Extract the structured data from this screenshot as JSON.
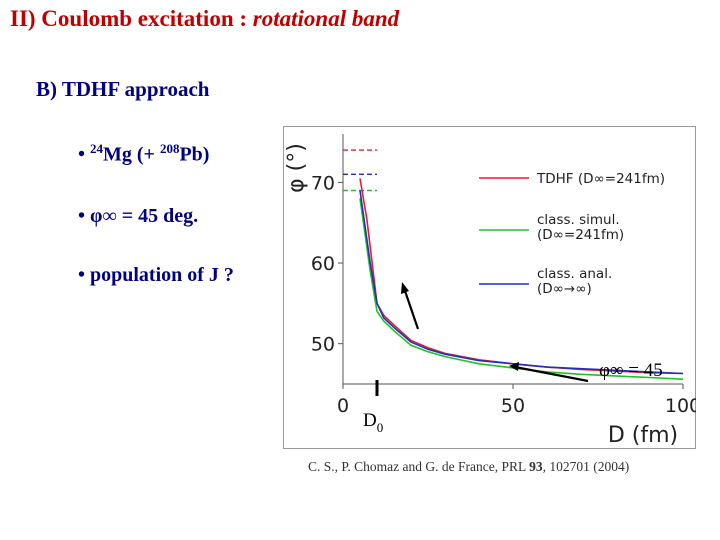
{
  "slide": {
    "title_prefix": "II) Coulomb excitation : ",
    "title_emph": "rotational band",
    "subtitle": "B)  TDHF approach",
    "bullets": {
      "b1_dot": "• ",
      "b1_sup1": "24",
      "b1_text1": "Mg (+ ",
      "b1_sup2": "208",
      "b1_text2": "Pb)",
      "b2": "• φ∞ = 45 deg.",
      "b3": "• population of J ?"
    },
    "citation_pre": "C. S., P. Chomaz and G. de France, PRL ",
    "citation_vol": "93",
    "citation_post": ", 102701 (2004)"
  },
  "chart_data": {
    "type": "line",
    "xlabel": "D (fm)",
    "ylabel": "φ (°)",
    "xlim": [
      0,
      100
    ],
    "ylim": [
      45,
      76
    ],
    "xticks": [
      "0",
      "50",
      "100"
    ],
    "yticks": [
      "50",
      "60",
      "70"
    ],
    "marker_label": "D",
    "marker_sub": "0",
    "marker_x": 10,
    "asymptote_label": "φ∞ = 45",
    "series": [
      {
        "name": "TDHF (D∞=241fm)",
        "color": "#e0202a",
        "asymptote": 74.0,
        "x": [
          5,
          6,
          7,
          8,
          9,
          10,
          12,
          15,
          20,
          25,
          30,
          40,
          50,
          60,
          70,
          80,
          90,
          100
        ],
        "y": [
          70.5,
          68,
          65.5,
          62,
          58.5,
          55,
          53.5,
          52.3,
          50.4,
          49.5,
          48.8,
          48.0,
          47.5,
          47.1,
          46.8,
          46.6,
          46.4,
          46.3
        ]
      },
      {
        "name": "class. simul. (D∞=241fm)",
        "color": "#22c02a",
        "asymptote": 69.0,
        "x": [
          5,
          6,
          7,
          8,
          9,
          10,
          12,
          15,
          20,
          25,
          30,
          40,
          50,
          60,
          70,
          80,
          90,
          100
        ],
        "y": [
          68,
          65,
          62,
          59,
          56.5,
          54,
          52.8,
          51.6,
          49.8,
          49.0,
          48.4,
          47.5,
          47.0,
          46.5,
          46.2,
          46.0,
          45.8,
          45.6
        ]
      },
      {
        "name": "class. anal. (D∞→∞)",
        "color": "#2030c0",
        "asymptote": 71.0,
        "x": [
          5,
          6,
          7,
          8,
          9,
          10,
          12,
          15,
          20,
          25,
          30,
          40,
          50,
          60,
          70,
          80,
          90,
          100
        ],
        "y": [
          69,
          66,
          63,
          60,
          57.5,
          55,
          53.2,
          52.0,
          50.2,
          49.3,
          48.7,
          47.9,
          47.5,
          47.1,
          46.9,
          46.7,
          46.5,
          46.3
        ]
      }
    ],
    "legend": [
      {
        "line1": "TDHF (D∞=241fm)",
        "line2": ""
      },
      {
        "line1": "class. simul.",
        "line2": "(D∞=241fm)"
      },
      {
        "line1": "class. anal.",
        "line2": "(D∞→∞)"
      }
    ],
    "legend_position": "top-right",
    "grid": false
  }
}
